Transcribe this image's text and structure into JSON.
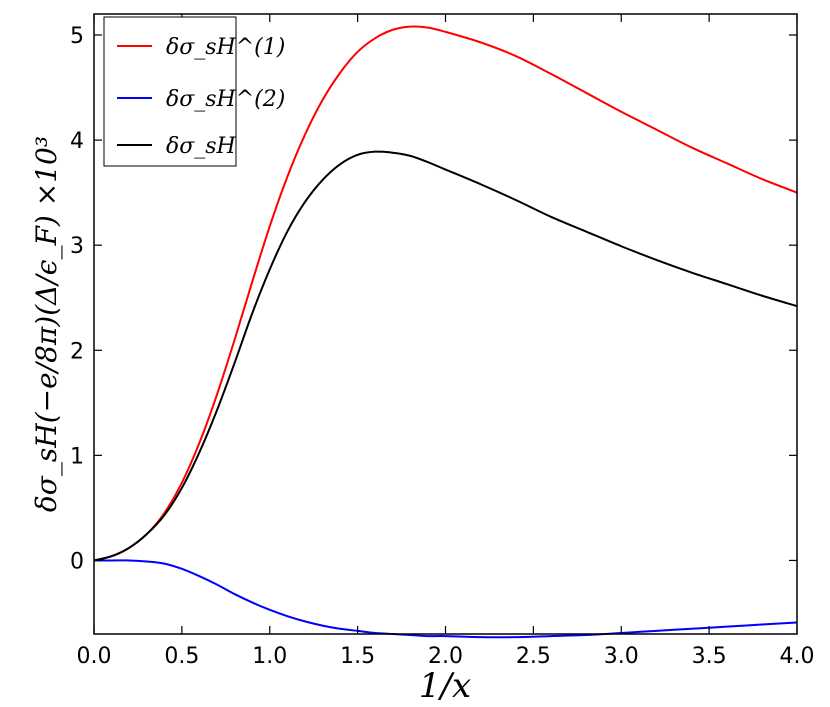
{
  "chart_data": {
    "type": "line",
    "xlabel": "1/x",
    "ylabel": "δσ_sH(−e/8π)(Δ/ϵ_F) ×10³",
    "xlim": [
      0.0,
      4.0
    ],
    "ylim": [
      -0.7,
      5.2
    ],
    "xticks": [
      "0.0",
      "0.5",
      "1.0",
      "1.5",
      "2.0",
      "2.5",
      "3.0",
      "3.5",
      "4.0"
    ],
    "yticks": [
      "0",
      "1",
      "2",
      "3",
      "4",
      "5"
    ],
    "grid": false,
    "legend_position": "top-left",
    "x": [
      0.0,
      0.1,
      0.2,
      0.3,
      0.4,
      0.5,
      0.6,
      0.7,
      0.8,
      0.9,
      1.0,
      1.1,
      1.2,
      1.3,
      1.4,
      1.5,
      1.6,
      1.7,
      1.8,
      1.9,
      2.0,
      2.2,
      2.4,
      2.6,
      2.8,
      3.0,
      3.2,
      3.4,
      3.6,
      3.8,
      4.0
    ],
    "series": [
      {
        "name": "δσ_sH^(1)",
        "color": "#ff0000",
        "values": [
          0.0,
          0.04,
          0.12,
          0.25,
          0.45,
          0.74,
          1.12,
          1.58,
          2.1,
          2.65,
          3.18,
          3.65,
          4.05,
          4.38,
          4.64,
          4.84,
          4.97,
          5.05,
          5.08,
          5.07,
          5.03,
          4.93,
          4.8,
          4.63,
          4.45,
          4.27,
          4.1,
          3.93,
          3.78,
          3.63,
          3.5
        ]
      },
      {
        "name": "δσ_sH^(2)",
        "color": "#0000ff",
        "values": [
          0.0,
          0.0,
          0.0,
          -0.01,
          -0.03,
          -0.08,
          -0.15,
          -0.23,
          -0.32,
          -0.4,
          -0.47,
          -0.53,
          -0.58,
          -0.62,
          -0.65,
          -0.67,
          -0.69,
          -0.7,
          -0.71,
          -0.72,
          -0.72,
          -0.73,
          -0.73,
          -0.72,
          -0.71,
          -0.69,
          -0.67,
          -0.65,
          -0.63,
          -0.61,
          -0.59
        ]
      },
      {
        "name": "δσ_sH",
        "color": "#000000",
        "values": [
          0.0,
          0.04,
          0.12,
          0.25,
          0.43,
          0.69,
          1.03,
          1.43,
          1.88,
          2.35,
          2.77,
          3.13,
          3.41,
          3.62,
          3.77,
          3.86,
          3.89,
          3.88,
          3.85,
          3.79,
          3.72,
          3.58,
          3.43,
          3.27,
          3.13,
          2.99,
          2.86,
          2.74,
          2.63,
          2.52,
          2.42
        ]
      }
    ]
  }
}
